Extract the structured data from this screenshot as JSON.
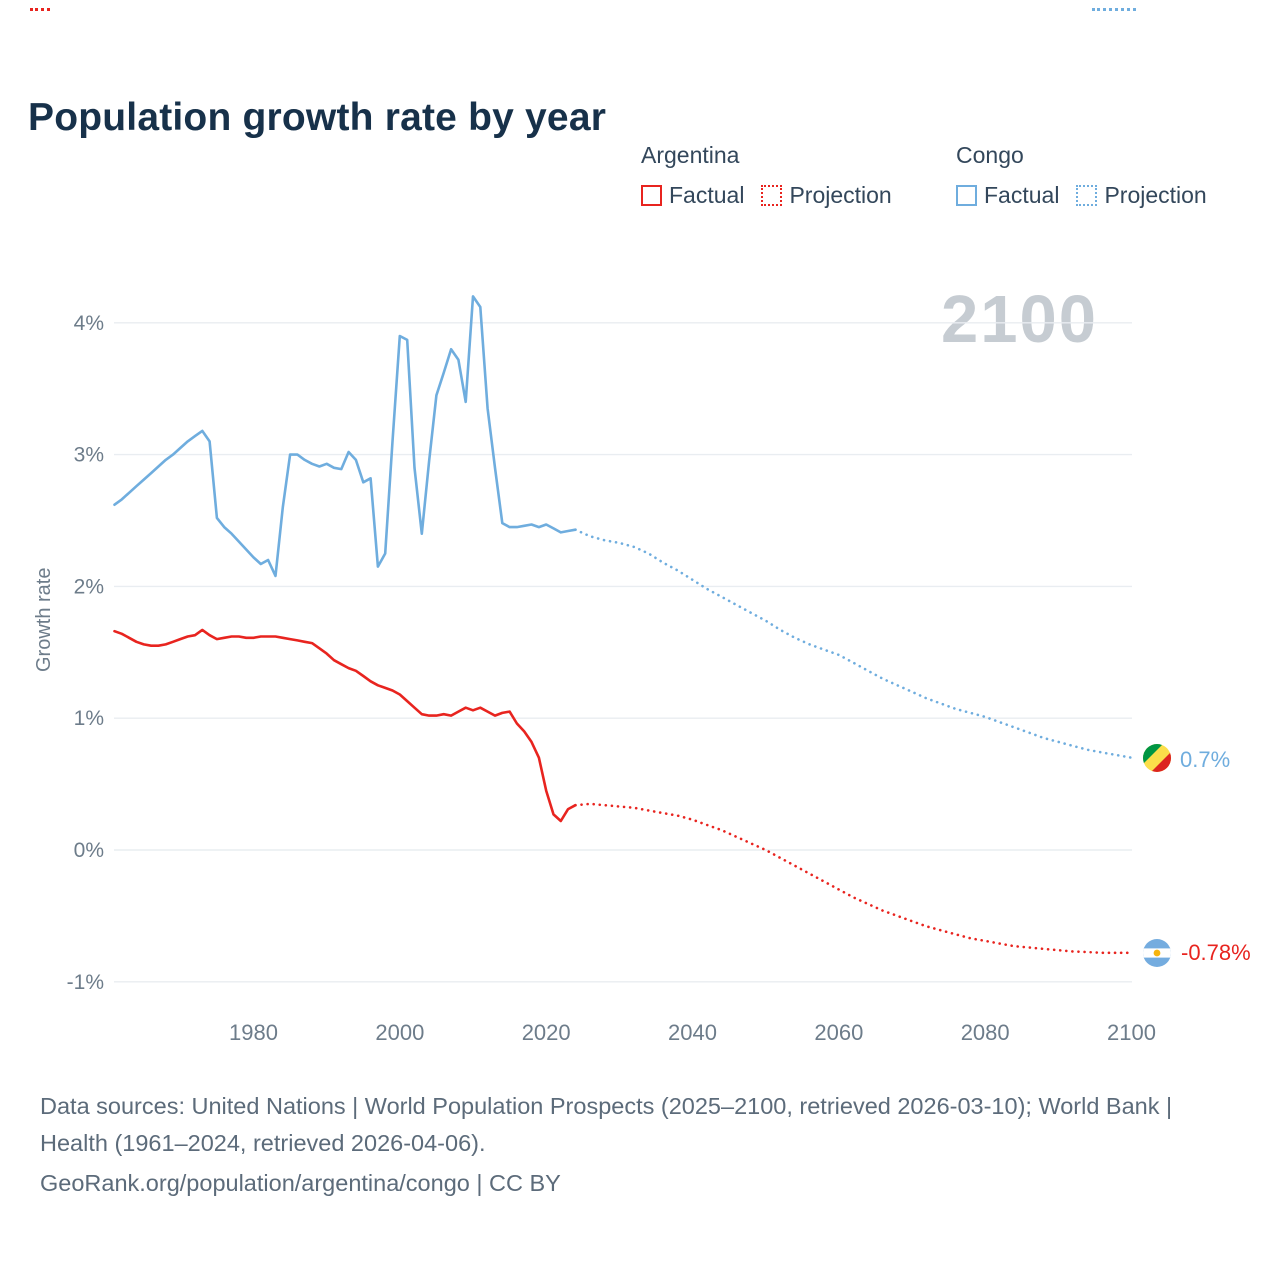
{
  "page": {
    "title": "Population growth rate by year",
    "watermark": "2100",
    "ylabel": "Growth rate",
    "footer_line1": "Data sources: United Nations | World Population Prospects (2025–2100, retrieved 2026-03-10); World Bank | Health (1961–2024, retrieved 2026-04-06).",
    "footer_line2": "GeoRank.org/population/argentina/congo | CC BY"
  },
  "colors": {
    "argentina": "#e8241f",
    "congo": "#6fadde",
    "title": "#17314a",
    "axis_text": "#6d7c8a",
    "legend_text": "#33475b",
    "grid": "#e9edf1",
    "watermark": "#c6ccd2",
    "footer_text": "#5c6b7a"
  },
  "legend": {
    "groups": [
      {
        "country": "Argentina",
        "color": "#e8241f",
        "items": [
          {
            "label": "Factual",
            "style": "solid"
          },
          {
            "label": "Projection",
            "style": "dotted"
          }
        ]
      },
      {
        "country": "Congo",
        "color": "#6fadde",
        "items": [
          {
            "label": "Factual",
            "style": "solid"
          },
          {
            "label": "Projection",
            "style": "dotted"
          }
        ]
      }
    ]
  },
  "end_labels": {
    "congo": {
      "text": "0.7%",
      "icon": "congo-flag"
    },
    "argentina": {
      "text": "-0.78%",
      "icon": "argentina-flag"
    }
  },
  "chart_data": {
    "type": "line",
    "title": "Population growth rate by year",
    "xlabel": "",
    "ylabel": "Growth rate",
    "xlim": [
      1961,
      2100
    ],
    "ylim": [
      -1.25,
      4.35
    ],
    "x_ticks": [
      1980,
      2000,
      2020,
      2040,
      2060,
      2080,
      2100
    ],
    "y_ticks": [
      {
        "value": -1,
        "label": "-1%"
      },
      {
        "value": 0,
        "label": "0%"
      },
      {
        "value": 1,
        "label": "1%"
      },
      {
        "value": 2,
        "label": "2%"
      },
      {
        "value": 3,
        "label": "3%"
      },
      {
        "value": 4,
        "label": "4%"
      }
    ],
    "grid": "horizontal",
    "legend_position": "top-right",
    "series": [
      {
        "name": "Congo Factual",
        "country": "Congo",
        "kind": "factual",
        "color": "#6fadde",
        "style": "solid",
        "points": [
          [
            1961,
            2.62
          ],
          [
            1962,
            2.66
          ],
          [
            1963,
            2.71
          ],
          [
            1964,
            2.76
          ],
          [
            1965,
            2.81
          ],
          [
            1966,
            2.86
          ],
          [
            1967,
            2.91
          ],
          [
            1968,
            2.96
          ],
          [
            1969,
            3.0
          ],
          [
            1970,
            3.05
          ],
          [
            1971,
            3.1
          ],
          [
            1972,
            3.14
          ],
          [
            1973,
            3.18
          ],
          [
            1974,
            3.1
          ],
          [
            1975,
            2.52
          ],
          [
            1976,
            2.45
          ],
          [
            1977,
            2.4
          ],
          [
            1978,
            2.34
          ],
          [
            1979,
            2.28
          ],
          [
            1980,
            2.22
          ],
          [
            1981,
            2.17
          ],
          [
            1982,
            2.2
          ],
          [
            1983,
            2.08
          ],
          [
            1984,
            2.6
          ],
          [
            1985,
            3.0
          ],
          [
            1986,
            3.0
          ],
          [
            1987,
            2.96
          ],
          [
            1988,
            2.93
          ],
          [
            1989,
            2.91
          ],
          [
            1990,
            2.93
          ],
          [
            1991,
            2.9
          ],
          [
            1992,
            2.89
          ],
          [
            1993,
            3.02
          ],
          [
            1994,
            2.96
          ],
          [
            1995,
            2.79
          ],
          [
            1996,
            2.82
          ],
          [
            1997,
            2.15
          ],
          [
            1998,
            2.25
          ],
          [
            1999,
            3.1
          ],
          [
            2000,
            3.9
          ],
          [
            2001,
            3.87
          ],
          [
            2002,
            2.9
          ],
          [
            2003,
            2.4
          ],
          [
            2004,
            2.95
          ],
          [
            2005,
            3.45
          ],
          [
            2006,
            3.62
          ],
          [
            2007,
            3.8
          ],
          [
            2008,
            3.72
          ],
          [
            2009,
            3.4
          ],
          [
            2010,
            4.2
          ],
          [
            2011,
            4.12
          ],
          [
            2012,
            3.35
          ],
          [
            2013,
            2.9
          ],
          [
            2014,
            2.48
          ],
          [
            2015,
            2.45
          ],
          [
            2016,
            2.45
          ],
          [
            2017,
            2.46
          ],
          [
            2018,
            2.47
          ],
          [
            2019,
            2.45
          ],
          [
            2020,
            2.47
          ],
          [
            2021,
            2.44
          ],
          [
            2022,
            2.41
          ],
          [
            2023,
            2.42
          ],
          [
            2024,
            2.43
          ]
        ]
      },
      {
        "name": "Congo Projection",
        "country": "Congo",
        "kind": "projection",
        "color": "#6fadde",
        "style": "dotted",
        "points": [
          [
            2024,
            2.43
          ],
          [
            2026,
            2.38
          ],
          [
            2028,
            2.35
          ],
          [
            2030,
            2.33
          ],
          [
            2032,
            2.3
          ],
          [
            2034,
            2.25
          ],
          [
            2036,
            2.18
          ],
          [
            2038,
            2.12
          ],
          [
            2040,
            2.05
          ],
          [
            2042,
            1.98
          ],
          [
            2044,
            1.92
          ],
          [
            2046,
            1.86
          ],
          [
            2048,
            1.8
          ],
          [
            2050,
            1.74
          ],
          [
            2052,
            1.67
          ],
          [
            2054,
            1.61
          ],
          [
            2056,
            1.56
          ],
          [
            2058,
            1.52
          ],
          [
            2060,
            1.48
          ],
          [
            2062,
            1.42
          ],
          [
            2064,
            1.36
          ],
          [
            2066,
            1.3
          ],
          [
            2068,
            1.25
          ],
          [
            2070,
            1.2
          ],
          [
            2072,
            1.15
          ],
          [
            2074,
            1.11
          ],
          [
            2076,
            1.07
          ],
          [
            2078,
            1.04
          ],
          [
            2080,
            1.01
          ],
          [
            2082,
            0.97
          ],
          [
            2084,
            0.93
          ],
          [
            2086,
            0.89
          ],
          [
            2088,
            0.85
          ],
          [
            2090,
            0.82
          ],
          [
            2092,
            0.79
          ],
          [
            2094,
            0.76
          ],
          [
            2096,
            0.74
          ],
          [
            2098,
            0.72
          ],
          [
            2100,
            0.7
          ]
        ]
      },
      {
        "name": "Argentina Factual",
        "country": "Argentina",
        "kind": "factual",
        "color": "#e8241f",
        "style": "solid",
        "points": [
          [
            1961,
            1.66
          ],
          [
            1962,
            1.64
          ],
          [
            1963,
            1.61
          ],
          [
            1964,
            1.58
          ],
          [
            1965,
            1.56
          ],
          [
            1966,
            1.55
          ],
          [
            1967,
            1.55
          ],
          [
            1968,
            1.56
          ],
          [
            1969,
            1.58
          ],
          [
            1970,
            1.6
          ],
          [
            1971,
            1.62
          ],
          [
            1972,
            1.63
          ],
          [
            1973,
            1.67
          ],
          [
            1974,
            1.63
          ],
          [
            1975,
            1.6
          ],
          [
            1976,
            1.61
          ],
          [
            1977,
            1.62
          ],
          [
            1978,
            1.62
          ],
          [
            1979,
            1.61
          ],
          [
            1980,
            1.61
          ],
          [
            1981,
            1.62
          ],
          [
            1982,
            1.62
          ],
          [
            1983,
            1.62
          ],
          [
            1984,
            1.61
          ],
          [
            1985,
            1.6
          ],
          [
            1986,
            1.59
          ],
          [
            1987,
            1.58
          ],
          [
            1988,
            1.57
          ],
          [
            1989,
            1.53
          ],
          [
            1990,
            1.49
          ],
          [
            1991,
            1.44
          ],
          [
            1992,
            1.41
          ],
          [
            1993,
            1.38
          ],
          [
            1994,
            1.36
          ],
          [
            1995,
            1.32
          ],
          [
            1996,
            1.28
          ],
          [
            1997,
            1.25
          ],
          [
            1998,
            1.23
          ],
          [
            1999,
            1.21
          ],
          [
            2000,
            1.18
          ],
          [
            2001,
            1.13
          ],
          [
            2002,
            1.08
          ],
          [
            2003,
            1.03
          ],
          [
            2004,
            1.02
          ],
          [
            2005,
            1.02
          ],
          [
            2006,
            1.03
          ],
          [
            2007,
            1.02
          ],
          [
            2008,
            1.05
          ],
          [
            2009,
            1.08
          ],
          [
            2010,
            1.06
          ],
          [
            2011,
            1.08
          ],
          [
            2012,
            1.05
          ],
          [
            2013,
            1.02
          ],
          [
            2014,
            1.04
          ],
          [
            2015,
            1.05
          ],
          [
            2016,
            0.96
          ],
          [
            2017,
            0.9
          ],
          [
            2018,
            0.82
          ],
          [
            2019,
            0.7
          ],
          [
            2020,
            0.45
          ],
          [
            2021,
            0.27
          ],
          [
            2022,
            0.22
          ],
          [
            2023,
            0.31
          ],
          [
            2024,
            0.34
          ]
        ]
      },
      {
        "name": "Argentina Projection",
        "country": "Argentina",
        "kind": "projection",
        "color": "#e8241f",
        "style": "dotted",
        "points": [
          [
            2024,
            0.34
          ],
          [
            2026,
            0.35
          ],
          [
            2028,
            0.34
          ],
          [
            2030,
            0.33
          ],
          [
            2032,
            0.32
          ],
          [
            2034,
            0.3
          ],
          [
            2036,
            0.28
          ],
          [
            2038,
            0.26
          ],
          [
            2040,
            0.23
          ],
          [
            2042,
            0.19
          ],
          [
            2044,
            0.15
          ],
          [
            2046,
            0.1
          ],
          [
            2048,
            0.05
          ],
          [
            2050,
            0.0
          ],
          [
            2052,
            -0.06
          ],
          [
            2054,
            -0.12
          ],
          [
            2056,
            -0.18
          ],
          [
            2058,
            -0.24
          ],
          [
            2060,
            -0.3
          ],
          [
            2062,
            -0.36
          ],
          [
            2064,
            -0.41
          ],
          [
            2066,
            -0.46
          ],
          [
            2068,
            -0.5
          ],
          [
            2070,
            -0.54
          ],
          [
            2072,
            -0.58
          ],
          [
            2074,
            -0.61
          ],
          [
            2076,
            -0.64
          ],
          [
            2078,
            -0.67
          ],
          [
            2080,
            -0.69
          ],
          [
            2082,
            -0.71
          ],
          [
            2084,
            -0.73
          ],
          [
            2086,
            -0.74
          ],
          [
            2088,
            -0.75
          ],
          [
            2090,
            -0.76
          ],
          [
            2092,
            -0.77
          ],
          [
            2094,
            -0.775
          ],
          [
            2096,
            -0.78
          ],
          [
            2098,
            -0.78
          ],
          [
            2100,
            -0.78
          ]
        ]
      }
    ]
  }
}
